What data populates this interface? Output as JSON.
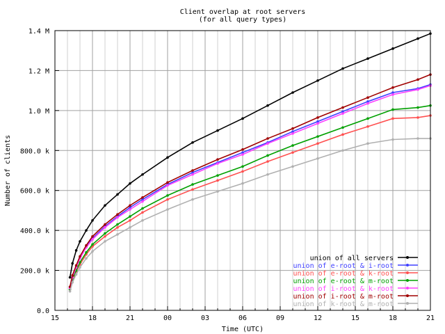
{
  "chart_data": {
    "type": "line",
    "title": "Client overlap at root servers",
    "subtitle": "(for all query types)",
    "xlabel": "Time (UTC)",
    "ylabel": "Number of clients",
    "x_unit": "hours elapsed since 15:00 UTC (tick labels wrap at 24h)",
    "xlim": [
      15,
      45
    ],
    "ylim": [
      0,
      1400000
    ],
    "x_ticks": [
      15,
      18,
      21,
      24,
      27,
      30,
      33,
      36,
      39,
      42,
      45
    ],
    "x_tick_labels": [
      "15",
      "18",
      "21",
      "00",
      "03",
      "06",
      "09",
      "12",
      "15",
      "18",
      "21"
    ],
    "y_ticks": [
      0,
      200000,
      400000,
      600000,
      800000,
      1000000,
      1200000,
      1400000
    ],
    "y_tick_labels": [
      "0.0",
      "200.0 k",
      "400.0 k",
      "600.0 k",
      "800.0 k",
      "1.0 M",
      "1.2 M",
      "1.4 M"
    ],
    "grid": true,
    "legend_position": "bottom-right",
    "x": [
      16.2,
      16.4,
      16.7,
      17,
      17.5,
      18,
      19,
      20,
      21,
      22,
      24,
      26,
      28,
      30,
      32,
      34,
      36,
      38,
      40,
      42,
      44,
      45
    ],
    "series": [
      {
        "name": "union of all servers",
        "color": "#000000",
        "values": [
          165000,
          235000,
          300000,
          345000,
          400000,
          450000,
          525000,
          580000,
          635000,
          680000,
          765000,
          840000,
          900000,
          960000,
          1025000,
          1090000,
          1150000,
          1210000,
          1260000,
          1310000,
          1360000,
          1385000
        ]
      },
      {
        "name": "union of e-root & i-root",
        "color": "#4040ff",
        "values": [
          115000,
          170000,
          220000,
          265000,
          320000,
          360000,
          420000,
          470000,
          515000,
          555000,
          630000,
          690000,
          740000,
          790000,
          840000,
          895000,
          945000,
          995000,
          1045000,
          1090000,
          1110000,
          1130000
        ]
      },
      {
        "name": "union of e-root & k-root",
        "color": "#ff5050",
        "values": [
          105000,
          150000,
          195000,
          230000,
          280000,
          320000,
          370000,
          415000,
          450000,
          490000,
          555000,
          605000,
          650000,
          695000,
          745000,
          790000,
          835000,
          880000,
          920000,
          960000,
          965000,
          975000
        ]
      },
      {
        "name": "union of e-root & m-root",
        "color": "#00a000",
        "values": [
          105000,
          155000,
          200000,
          240000,
          290000,
          330000,
          385000,
          430000,
          470000,
          510000,
          575000,
          630000,
          675000,
          720000,
          775000,
          825000,
          870000,
          915000,
          960000,
          1005000,
          1015000,
          1025000
        ]
      },
      {
        "name": "union of i-root & k-root",
        "color": "#ff40ff",
        "values": [
          112000,
          165000,
          215000,
          260000,
          315000,
          355000,
          415000,
          465000,
          505000,
          545000,
          625000,
          680000,
          735000,
          780000,
          835000,
          885000,
          935000,
          985000,
          1035000,
          1080000,
          1105000,
          1125000
        ]
      },
      {
        "name": "union of i-root & m-root",
        "color": "#a00000",
        "values": [
          118000,
          175000,
          225000,
          270000,
          325000,
          370000,
          430000,
          480000,
          525000,
          565000,
          640000,
          700000,
          755000,
          805000,
          860000,
          910000,
          965000,
          1015000,
          1065000,
          1115000,
          1155000,
          1180000
        ]
      },
      {
        "name": "union of k-root & m-root",
        "color": "#b0b0b0",
        "values": [
          95000,
          140000,
          180000,
          215000,
          260000,
          295000,
          345000,
          380000,
          415000,
          450000,
          505000,
          555000,
          595000,
          635000,
          680000,
          720000,
          760000,
          800000,
          835000,
          855000,
          860000,
          860000
        ]
      }
    ]
  }
}
